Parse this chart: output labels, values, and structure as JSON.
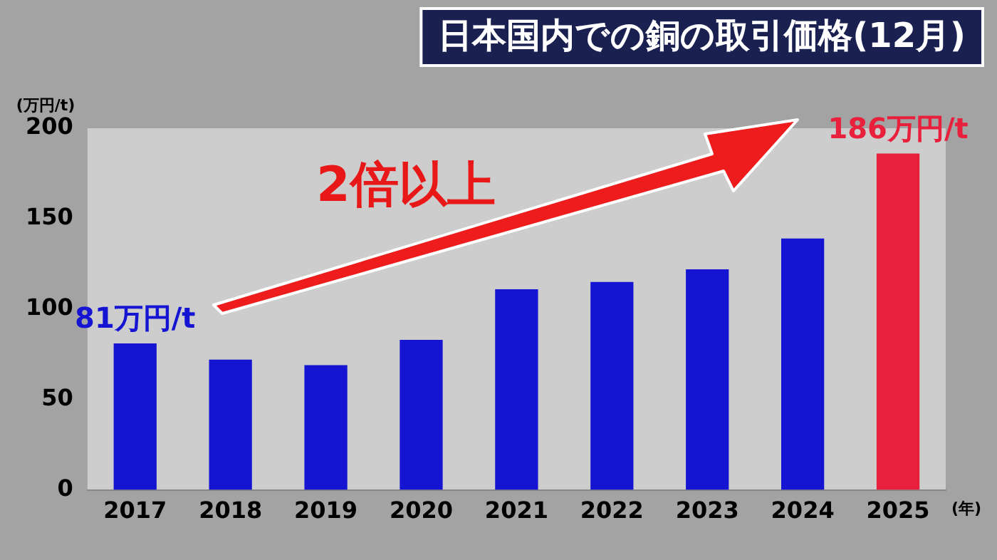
{
  "chart_data": {
    "type": "bar",
    "title": "日本国内での銅の取引価格(12月)",
    "ylabel": "(万円/t)",
    "xlabel": "(年)",
    "categories": [
      "2017",
      "2018",
      "2019",
      "2020",
      "2021",
      "2022",
      "2023",
      "2024",
      "2025"
    ],
    "values": [
      81,
      72,
      69,
      83,
      111,
      115,
      122,
      139,
      186
    ],
    "colors": [
      "#1414d2",
      "#1414d2",
      "#1414d2",
      "#1414d2",
      "#1414d2",
      "#1414d2",
      "#1414d2",
      "#1414d2",
      "#e8203c"
    ],
    "value_labels": [
      "81万円/t",
      null,
      null,
      null,
      null,
      null,
      null,
      null,
      "186万円/t"
    ],
    "annotations": [
      "2倍以上"
    ],
    "ylim": [
      0,
      200
    ],
    "yticks": [
      0,
      50,
      100,
      150,
      200
    ],
    "grid": false,
    "legend": false
  }
}
